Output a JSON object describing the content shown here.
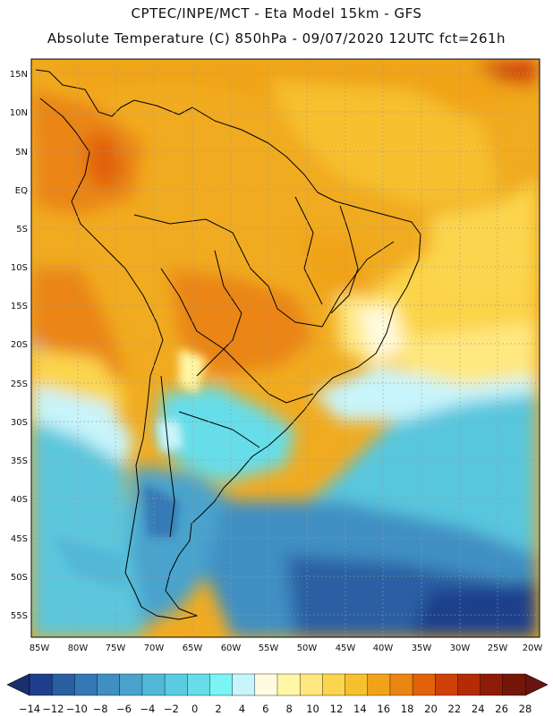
{
  "header": {
    "title_line1": "CPTEC/INPE/MCT -   Eta Model 15km - GFS",
    "title_line2": "Absolute Temperature (C) 850hPa - 09/07/2020 12UTC fct=261h"
  },
  "map": {
    "lat_labels": [
      "15N",
      "10N",
      "5N",
      "EQ",
      "5S",
      "10S",
      "15S",
      "20S",
      "25S",
      "30S",
      "35S",
      "40S",
      "45S",
      "50S",
      "55S"
    ],
    "lon_labels": [
      "85W",
      "80W",
      "75W",
      "70W",
      "65W",
      "60W",
      "55W",
      "50W",
      "45W",
      "40W",
      "35W",
      "30W",
      "25W",
      "20W"
    ]
  },
  "colorbar": {
    "labels": [
      "-14",
      "-12",
      "-10",
      "-8",
      "-6",
      "-4",
      "-2",
      "0",
      "2",
      "4",
      "6",
      "8",
      "10",
      "12",
      "14",
      "16",
      "18",
      "20",
      "22",
      "24",
      "26",
      "28"
    ],
    "colors": [
      "#1f3f8c",
      "#2a5ea3",
      "#3479b6",
      "#3f8fc3",
      "#4aa3cd",
      "#52b8d8",
      "#5bcbe2",
      "#66dde9",
      "#7af4f4",
      "#c8f4fb",
      "#fffbe0",
      "#fff6a6",
      "#ffe880",
      "#fbd54d",
      "#f6c02f",
      "#f0a318",
      "#ea8512",
      "#e1620b",
      "#cf4107",
      "#b42b06",
      "#8e1b07",
      "#741708"
    ],
    "lowarrow_color": "#1a2f6e",
    "higharrow_color": "#6a1412"
  }
}
